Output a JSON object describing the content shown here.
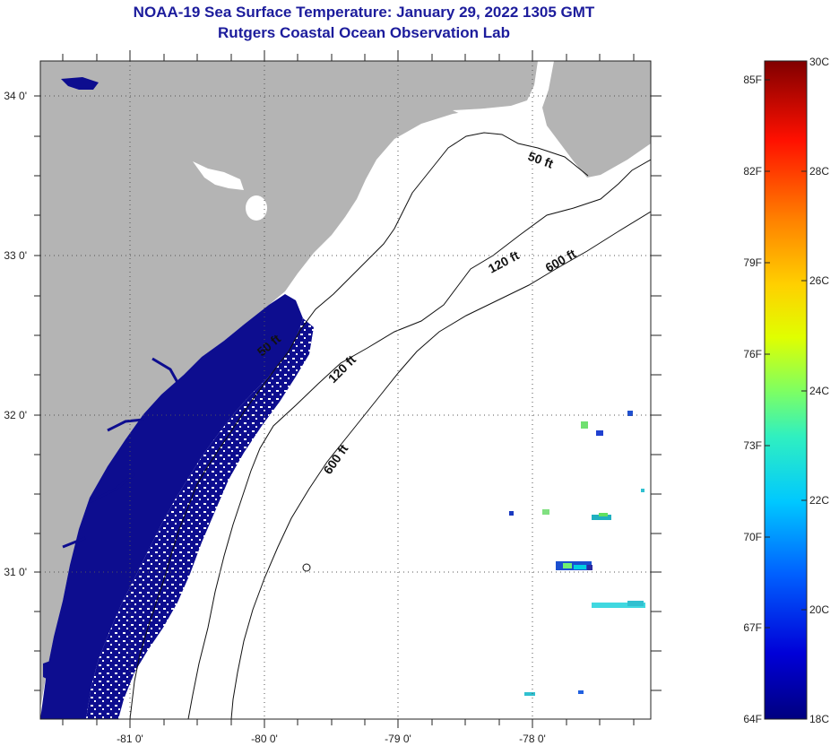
{
  "title_line1": "NOAA-19 Sea Surface Temperature:  January 29, 2022 1305 GMT",
  "title_line2": "Rutgers Coastal Ocean Observation Lab",
  "lat_ticks": [
    "34 0'",
    "33 0'",
    "32 0'",
    "31 0'"
  ],
  "lon_ticks": [
    "-81 0'",
    "-80 0'",
    "-79 0'",
    "-78 0'"
  ],
  "contours": {
    "c50a": "50 ft",
    "c50b": "50 ft",
    "c120a": "120 ft",
    "c120b": "120 ft",
    "c600a": "600 ft",
    "c600b": "600 ft"
  },
  "colorbar": {
    "fahrenheit": [
      "85F",
      "82F",
      "79F",
      "76F",
      "73F",
      "70F",
      "67F",
      "64F"
    ],
    "celsius": [
      "30C",
      "28C",
      "26C",
      "24C",
      "22C",
      "20C",
      "18C"
    ]
  },
  "colors": {
    "land": "#b4b4b4",
    "cold_water": "#0d0d8f",
    "title": "#1c1c9c"
  }
}
